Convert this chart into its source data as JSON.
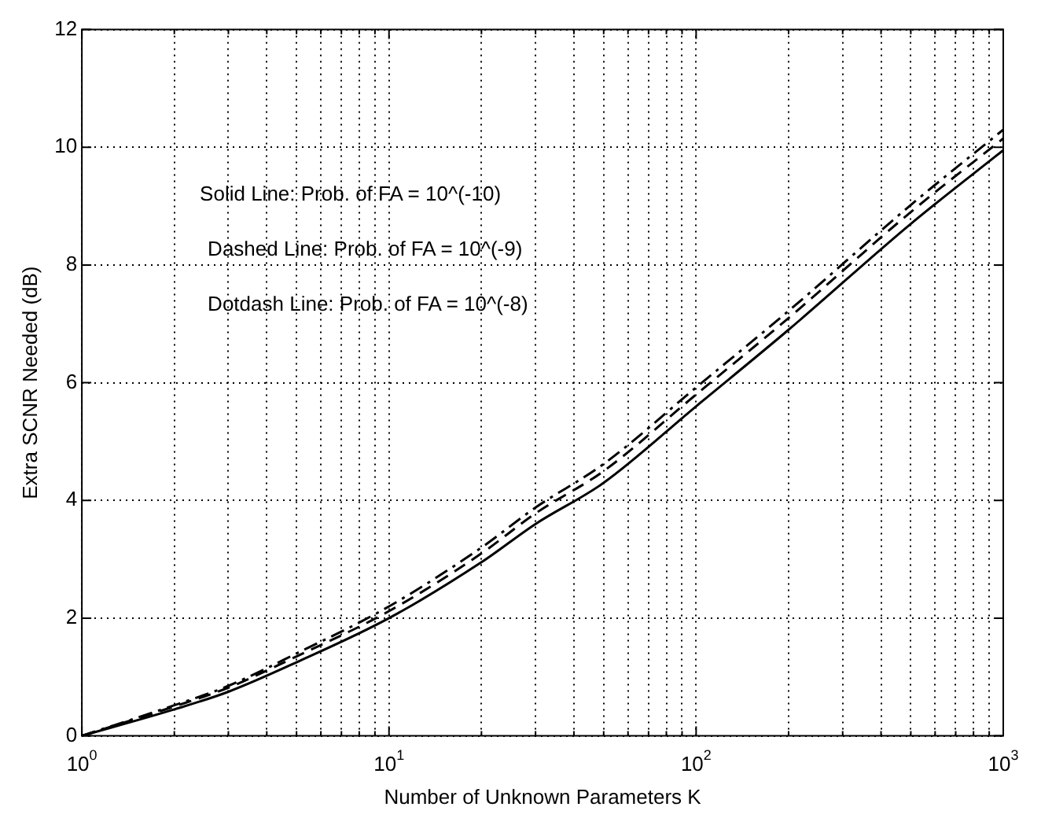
{
  "chart_data": {
    "type": "line",
    "xlabel": "Number of Unknown Parameters K",
    "ylabel": "Extra SCNR Needed (dB)",
    "annotations": [
      "Solid Line: Prob. of FA = 10^(-10)",
      "Dashed Line: Prob. of FA = 10^(-9)",
      "Dotdash Line: Prob. of FA = 10^(-8)"
    ],
    "log": "x",
    "grid": true,
    "legend": false,
    "marker": "none",
    "xlim": [
      1,
      1000
    ],
    "ylim": [
      0,
      12
    ],
    "xticks": [
      {
        "value": 1,
        "label": "10$^{0}$"
      },
      {
        "value": 2,
        "label": null
      },
      {
        "value": 3,
        "label": null
      },
      {
        "value": 4,
        "label": null
      },
      {
        "value": 5,
        "label": null
      },
      {
        "value": 6,
        "label": null
      },
      {
        "value": 7,
        "label": null
      },
      {
        "value": 8,
        "label": null
      },
      {
        "value": 9,
        "label": null
      },
      {
        "value": 10,
        "label": "10$^{1}$"
      },
      {
        "value": 20,
        "label": null
      },
      {
        "value": 30,
        "label": null
      },
      {
        "value": 40,
        "label": null
      },
      {
        "value": 50,
        "label": null
      },
      {
        "value": 60,
        "label": null
      },
      {
        "value": 70,
        "label": null
      },
      {
        "value": 80,
        "label": null
      },
      {
        "value": 90,
        "label": null
      },
      {
        "value": 100,
        "label": "10$^{2}$"
      },
      {
        "value": 200,
        "label": null
      },
      {
        "value": 300,
        "label": null
      },
      {
        "value": 400,
        "label": null
      },
      {
        "value": 500,
        "label": null
      },
      {
        "value": 600,
        "label": null
      },
      {
        "value": 700,
        "label": null
      },
      {
        "value": 800,
        "label": null
      },
      {
        "value": 900,
        "label": null
      },
      {
        "value": 1000,
        "label": "10$^{3}$"
      }
    ],
    "yticks": [
      0,
      2,
      4,
      6,
      8,
      10,
      12
    ],
    "x": [
      1,
      2,
      3,
      5,
      10,
      20,
      30,
      50,
      100,
      200,
      500,
      1000
    ],
    "series": [
      {
        "color": "#000000",
        "line_style": "solid",
        "values": [
          0,
          0.45,
          0.75,
          1.25,
          2.0,
          2.95,
          3.6,
          4.3,
          5.6,
          6.9,
          8.7,
          9.95
        ]
      },
      {
        "color": "#000000",
        "line_style": "dashed",
        "values": [
          0,
          0.5,
          0.82,
          1.35,
          2.12,
          3.1,
          3.78,
          4.5,
          5.8,
          7.1,
          8.9,
          10.15
        ]
      },
      {
        "color": "#000000",
        "line_style": "dashdot",
        "values": [
          0,
          0.52,
          0.85,
          1.4,
          2.2,
          3.2,
          3.88,
          4.62,
          5.92,
          7.22,
          9.02,
          10.3
        ]
      }
    ]
  }
}
